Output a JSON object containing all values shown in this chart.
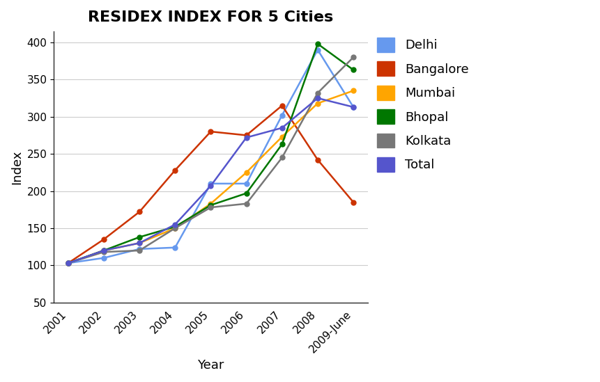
{
  "title": "RESIDEX INDEX FOR 5 Cities",
  "xlabel": "Year",
  "ylabel": "Index",
  "x_labels": [
    "2001",
    "2002",
    "2003",
    "2004",
    "2005",
    "2006",
    "2007",
    "2008",
    "2009-June"
  ],
  "series": {
    "Delhi": {
      "values": [
        103,
        110,
        122,
        124,
        210,
        210,
        302,
        390,
        313
      ],
      "color": "#6699EE",
      "marker": "o"
    },
    "Bangalore": {
      "values": [
        103,
        135,
        172,
        228,
        280,
        275,
        315,
        242,
        185
      ],
      "color": "#CC3300",
      "marker": "o"
    },
    "Mumbai": {
      "values": [
        103,
        120,
        130,
        150,
        183,
        225,
        273,
        318,
        335
      ],
      "color": "#FFA500",
      "marker": "o"
    },
    "Bhopal": {
      "values": [
        103,
        120,
        138,
        152,
        181,
        197,
        263,
        398,
        363
      ],
      "color": "#007700",
      "marker": "o"
    },
    "Kolkata": {
      "values": [
        103,
        118,
        120,
        150,
        178,
        183,
        245,
        332,
        380
      ],
      "color": "#777777",
      "marker": "o"
    },
    "Total": {
      "values": [
        103,
        120,
        130,
        155,
        207,
        272,
        285,
        325,
        313
      ],
      "color": "#5555CC",
      "marker": "o"
    }
  },
  "ylim": [
    50,
    415
  ],
  "yticks": [
    50,
    100,
    150,
    200,
    250,
    300,
    350,
    400
  ],
  "background_color": "#FFFFFF",
  "grid_color": "#CCCCCC",
  "title_fontsize": 16,
  "axis_label_fontsize": 13,
  "tick_fontsize": 11,
  "legend_fontsize": 13
}
